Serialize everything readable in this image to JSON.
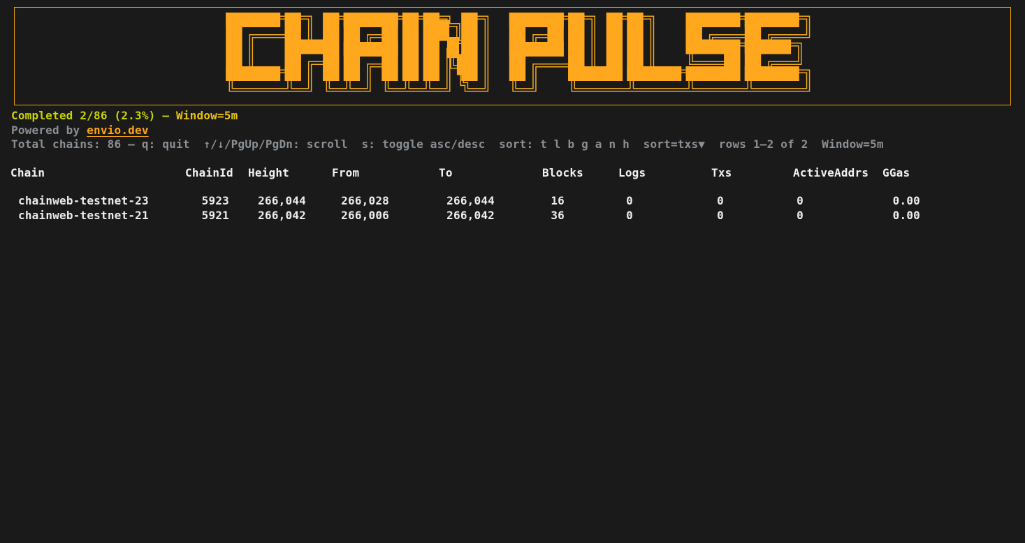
{
  "title": {
    "text": "CHAIN PULSE"
  },
  "colors": {
    "background": "#1a1a1a",
    "accent_orange": "#ffa81e",
    "border_orange": "#ef9e0c",
    "status_green": "#c9d405",
    "status_gold": "#e8c412",
    "muted_gray": "#8b9096",
    "text_white": "#f2f2f2"
  },
  "status": {
    "completed": "Completed 2/86 (2.3%) — ",
    "window": "Window=5m",
    "powered_prefix": "Powered by ",
    "powered_link": "envio.dev",
    "help": "Total chains: 86 — q: quit  ↑/↓/PgUp/PgDn: scroll  s: toggle asc/desc  sort: t l b g a n h  sort=txs▼  rows 1–2 of 2  Window=5m"
  },
  "table": {
    "headers": [
      "Chain",
      "ChainId",
      "Height",
      "From",
      "To",
      "Blocks",
      "Logs",
      "Txs",
      "ActiveAddrs",
      "GGas"
    ],
    "rows": [
      {
        "chain": "chainweb-testnet-23",
        "chain_id": "5923",
        "height": "266,044",
        "from": "266,028",
        "to": "266,044",
        "blocks": "16",
        "logs": "0",
        "txs": "0",
        "active_addrs": "0",
        "ggas": "0.00"
      },
      {
        "chain": "chainweb-testnet-21",
        "chain_id": "5921",
        "height": "266,042",
        "from": "266,006",
        "to": "266,042",
        "blocks": "36",
        "logs": "0",
        "txs": "0",
        "active_addrs": "0",
        "ggas": "0.00"
      }
    ]
  }
}
